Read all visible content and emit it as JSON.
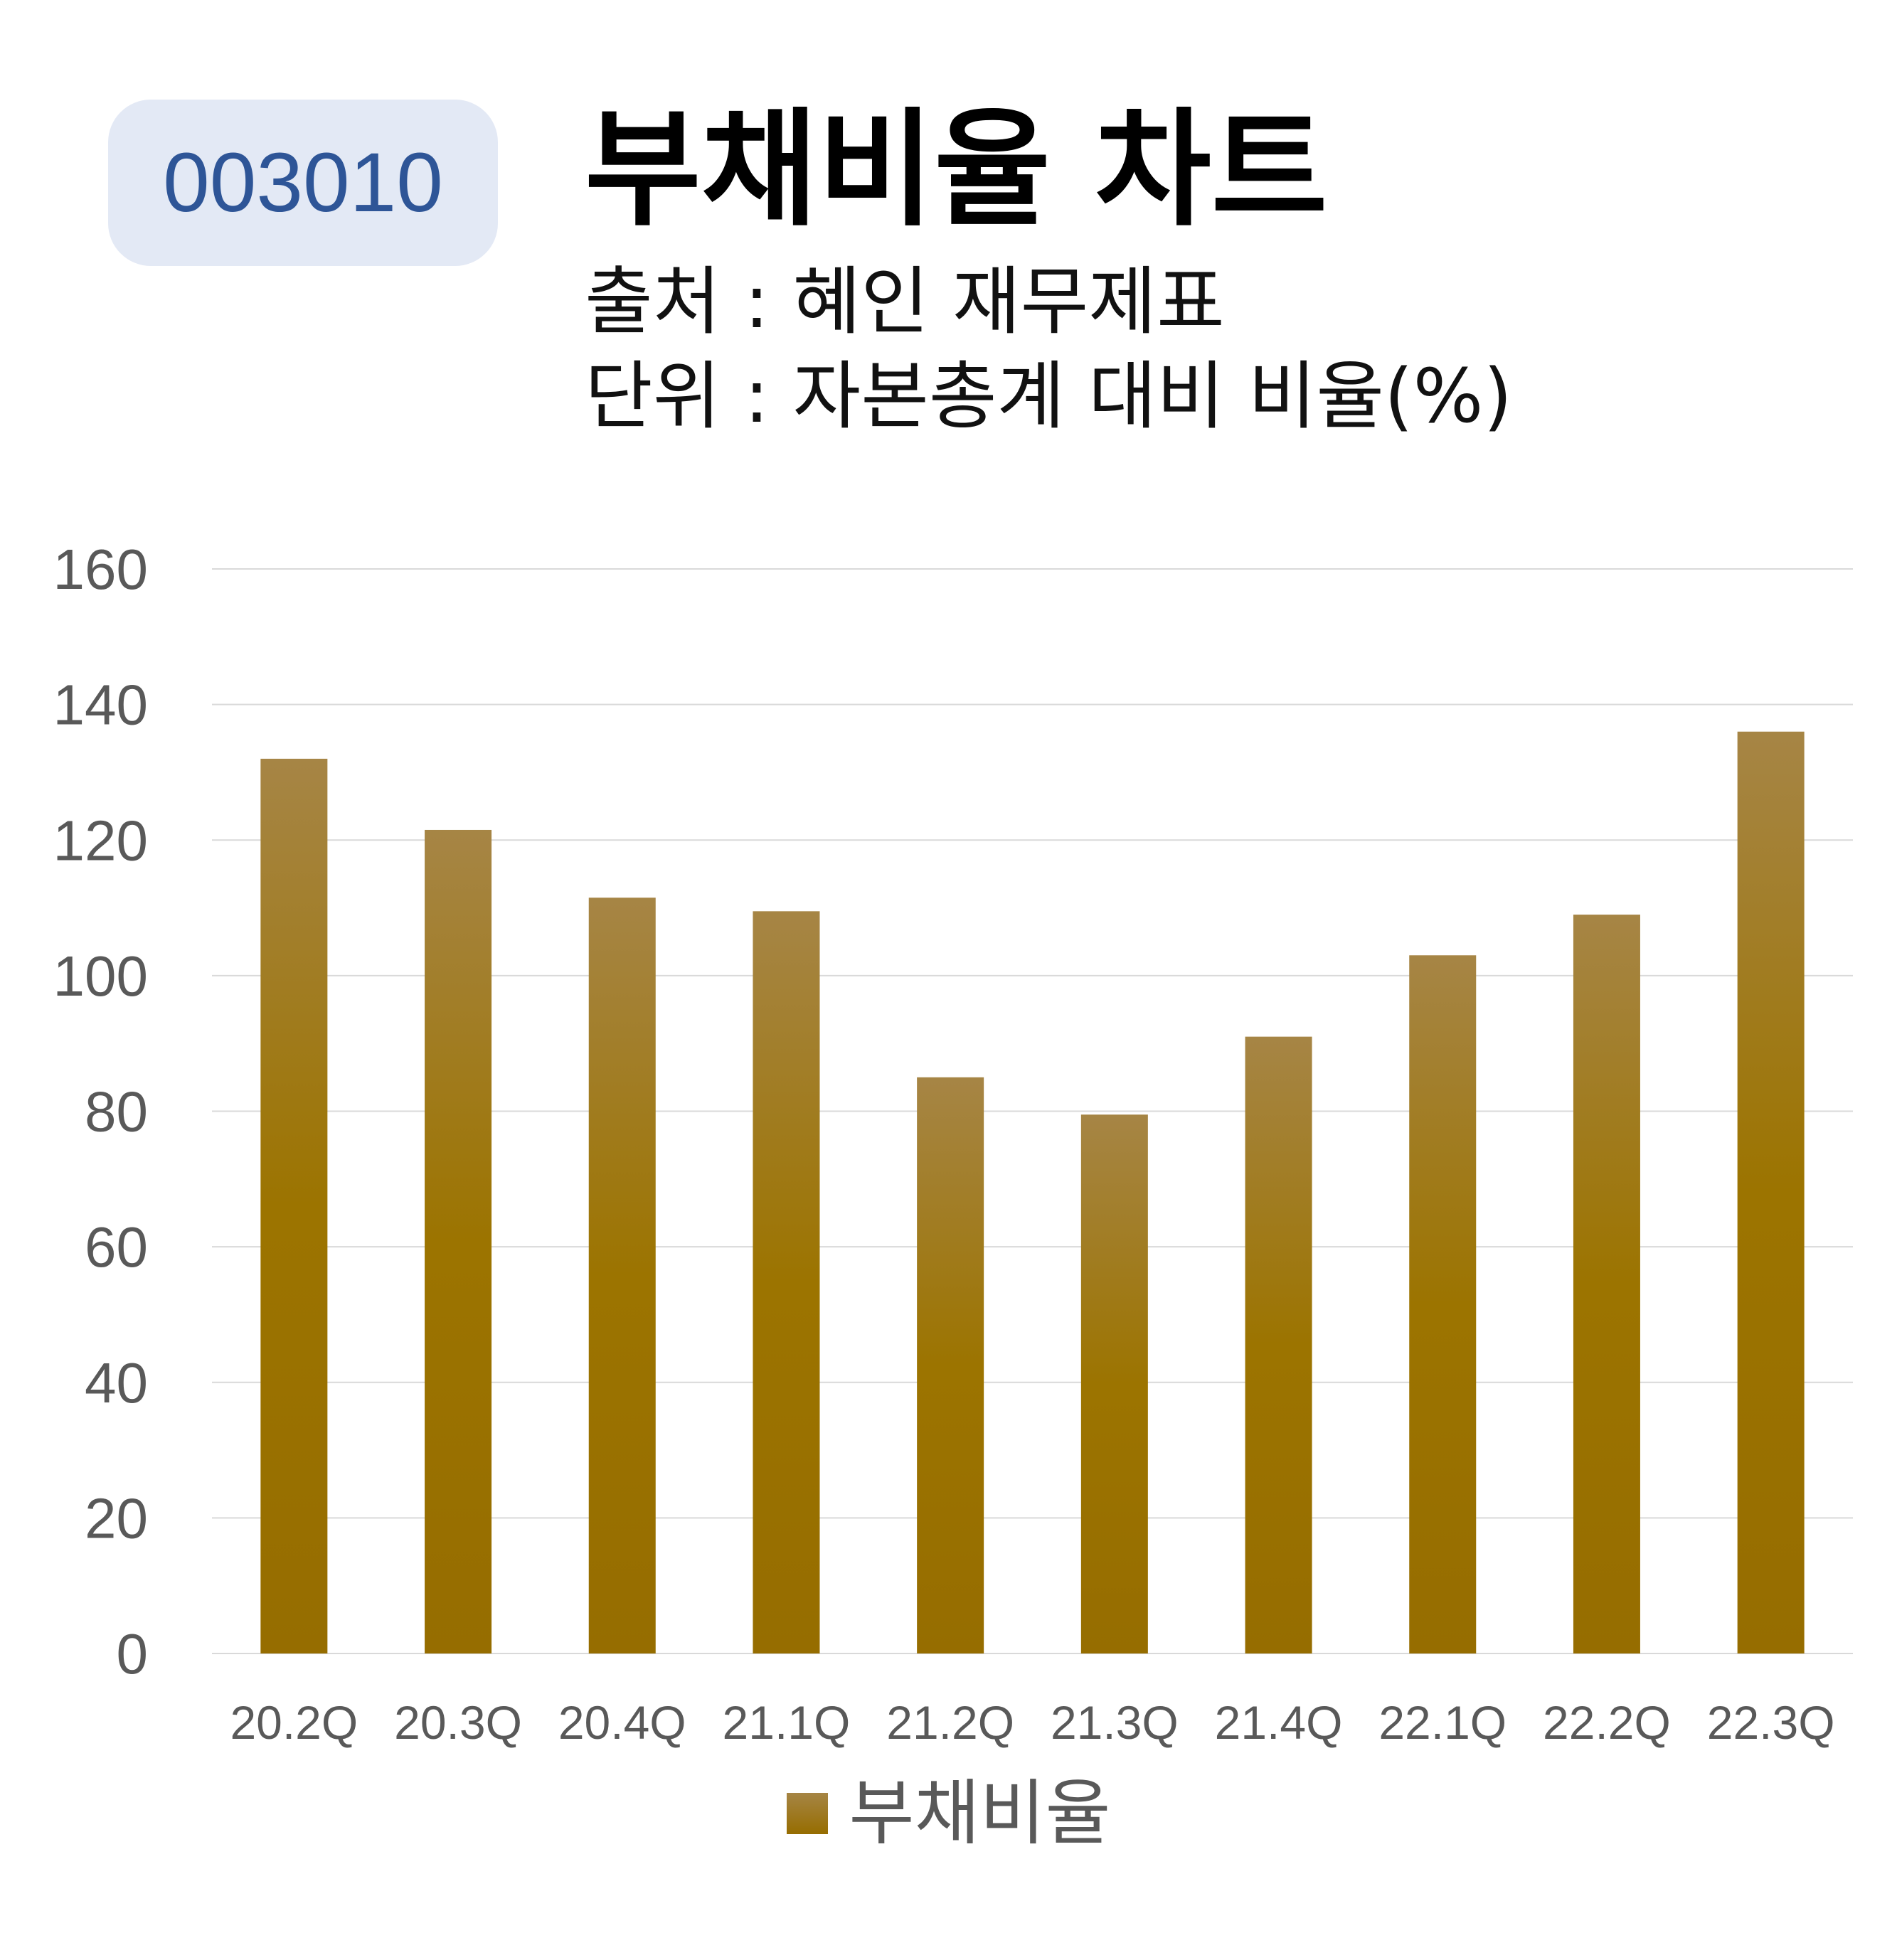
{
  "badge": {
    "code": "003010"
  },
  "header": {
    "title": "부채비율 차트",
    "source": "출처 : 혜인 재무제표",
    "unit": "단위 : 자본총계 대비 비율(%)"
  },
  "colors": {
    "bar_top": "#a68545",
    "bar_bottom": "#966d00",
    "grid": "#d9d9d9",
    "badge_bg": "#e3e9f5",
    "badge_text": "#2e5597"
  },
  "chart_data": {
    "type": "bar",
    "categories": [
      "20.2Q",
      "20.3Q",
      "20.4Q",
      "21.1Q",
      "21.2Q",
      "21.3Q",
      "21.4Q",
      "22.1Q",
      "22.2Q",
      "22.3Q"
    ],
    "series": [
      {
        "name": "부채비율",
        "values": [
          132,
          121.5,
          111.5,
          109.5,
          85,
          79.5,
          91,
          103,
          109,
          136
        ]
      }
    ],
    "yticks": [
      0,
      20,
      40,
      60,
      80,
      100,
      120,
      140,
      160
    ],
    "ylim": [
      0,
      160
    ],
    "grid": true,
    "legend_position": "bottom"
  }
}
